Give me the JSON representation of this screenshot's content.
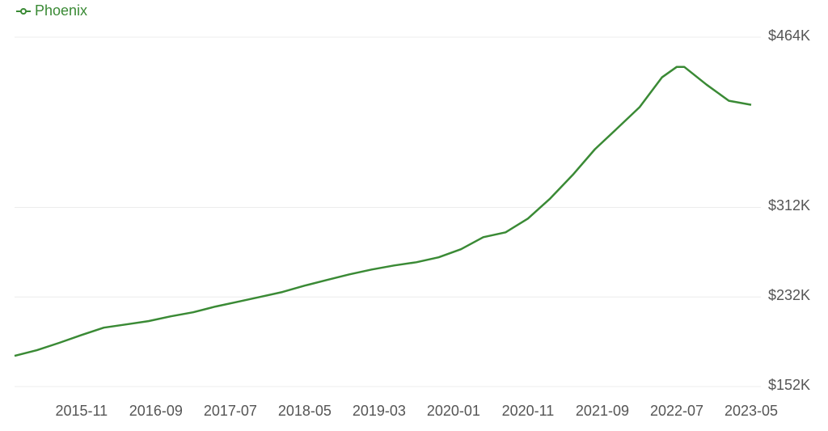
{
  "chart_data": {
    "type": "line",
    "x": [
      "2015-02",
      "2015-05",
      "2015-08",
      "2015-11",
      "2016-02",
      "2016-05",
      "2016-08",
      "2016-11",
      "2017-02",
      "2017-05",
      "2017-08",
      "2017-11",
      "2018-02",
      "2018-05",
      "2018-08",
      "2018-11",
      "2019-02",
      "2019-05",
      "2019-08",
      "2019-11",
      "2020-02",
      "2020-05",
      "2020-08",
      "2020-11",
      "2021-02",
      "2021-05",
      "2021-08",
      "2021-11",
      "2022-02",
      "2022-05",
      "2022-07",
      "2022-08",
      "2022-11",
      "2023-02",
      "2023-05"
    ],
    "series": [
      {
        "name": "Phoenix",
        "color": "#3a8a35",
        "values": [
          179400,
          184400,
          191000,
          198000,
          204600,
          207500,
          210400,
          214700,
          218300,
          223400,
          227700,
          232000,
          236400,
          242100,
          247200,
          252200,
          256500,
          260100,
          263000,
          267400,
          274600,
          285400,
          289700,
          302000,
          320000,
          340900,
          364000,
          382700,
          401500,
          428100,
          437500,
          437500,
          421600,
          407200,
          403600
        ]
      }
    ],
    "xlim": [
      "2015-02",
      "2023-05"
    ],
    "xticks": [
      "2015-11",
      "2016-09",
      "2017-07",
      "2018-05",
      "2019-03",
      "2020-01",
      "2020-11",
      "2021-09",
      "2022-07",
      "2023-05"
    ],
    "ylim": [
      152000,
      464000
    ],
    "yticks": [
      {
        "value": 152000,
        "label": "$152K"
      },
      {
        "value": 232000,
        "label": "$232K"
      },
      {
        "value": 312000,
        "label": "$312K"
      },
      {
        "value": 464000,
        "label": "$464K"
      }
    ],
    "grid": true
  }
}
